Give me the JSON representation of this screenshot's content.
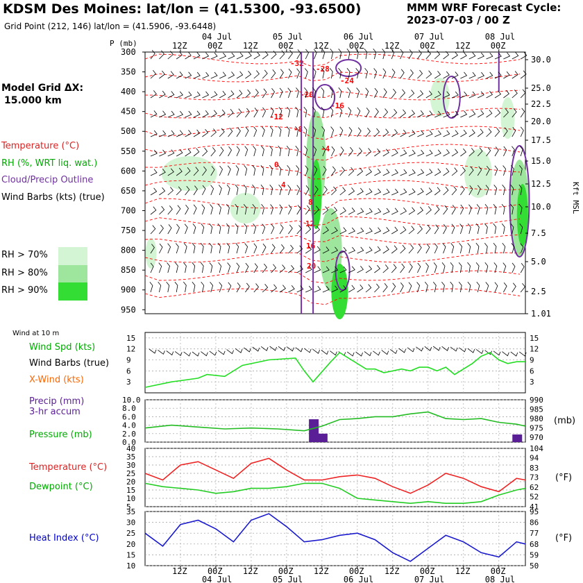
{
  "header": {
    "title": "KDSM Des Moines:  lat/lon = (41.5300, -93.6500)",
    "subtitle": "Grid Point (212, 146) lat/lon = (41.5906, -93.6448)",
    "cycle_line1": "MMM WRF Forecast Cycle:",
    "cycle_line2": "2023-07-03 / 00  Z"
  },
  "grid_info": {
    "line1": "Model Grid ΔX:",
    "line2": "15.000 km"
  },
  "legend": {
    "temperature": "Temperature (°C)",
    "rh": "RH (%, WRT liq. wat.)",
    "cloud": "Cloud/Precip Outline",
    "wind": "Wind Barbs (kts) (true)",
    "rh70": "RH > 70%",
    "rh80": "RH > 80%",
    "rh90": "RH > 90%"
  },
  "bottom_legend": {
    "wind_at": "Wind at 10 m",
    "wind_spd": "Wind Spd (kts)",
    "wind_barbs": "Wind Barbs (true)",
    "xwind": "X-Wind (kts)",
    "precip1": "Precip (mm)",
    "precip2": "3-hr accum",
    "pressure": "Pressure (mb)",
    "temp": "Temperature (°C)",
    "dew": "Dewpoint (°C)",
    "heat": "Heat Index (°C)",
    "mb": "(mb)",
    "degf": "(°F)"
  },
  "colors": {
    "temperature": "#ff0000",
    "rh": "#00cc00",
    "cloud": "#7030a0",
    "precip": "#5a1e96",
    "heat": "#0000cc",
    "rh70": "#d4f5d4",
    "rh80": "#9ee59e",
    "rh90": "#33dd33"
  },
  "time_axis": {
    "top_ticks": [
      "12Z",
      "00Z",
      "12Z",
      "00Z",
      "12Z",
      "00Z",
      "12Z",
      "00Z",
      "12Z",
      "00Z"
    ],
    "top_dates": [
      "04 Jul",
      "05 Jul",
      "06 Jul",
      "07 Jul",
      "08 Jul"
    ],
    "bottom_ticks": [
      "12Z",
      "00Z",
      "12Z",
      "00Z",
      "12Z",
      "00Z",
      "12Z",
      "00Z",
      "12Z",
      "00Z"
    ],
    "bottom_dates": [
      "04 Jul",
      "05 Jul",
      "06 Jul",
      "07 Jul",
      "08 Jul"
    ],
    "p_label": "P (mb)"
  },
  "chart_data": [
    {
      "type": "heatmap",
      "description_of": "cross-section",
      "ylabel": "P (mb)",
      "y_ticks": [
        "300",
        "350",
        "400",
        "450",
        "500",
        "550",
        "600",
        "650",
        "700",
        "750",
        "800",
        "850",
        "900",
        "950"
      ],
      "y_right_label": "Kft MSL",
      "y_right_ticks": [
        "30.0",
        "25.0",
        "22.5",
        "20.0",
        "17.5",
        "15.0",
        "12.5",
        "10.0",
        "7.5",
        "5.0",
        "2.5",
        "1.01"
      ],
      "temperature_labels": [
        "-32",
        "-28",
        "-24",
        "-20",
        "-16",
        "-12",
        "-8",
        "-4",
        "0",
        "4",
        "8",
        "12",
        "16",
        "20"
      ]
    },
    {
      "type": "line",
      "title": "Wind Spd (kts)",
      "y_ticks_left": [
        "15",
        "12",
        "9",
        "6",
        "3"
      ],
      "y_ticks_right": [
        "15",
        "12",
        "9",
        "6",
        "3"
      ],
      "x_hours": [
        0,
        9,
        18,
        21,
        27,
        33,
        42,
        51,
        54,
        57,
        63,
        66,
        69,
        75,
        78,
        81,
        87,
        90,
        93,
        96,
        99,
        102,
        105,
        111,
        114,
        117,
        120,
        123,
        126,
        129
      ],
      "values": [
        1.5,
        3,
        4,
        5,
        4.5,
        7.5,
        9,
        9.5,
        6,
        3,
        8.5,
        11,
        9.5,
        6.5,
        6.5,
        5.5,
        6.5,
        6,
        7,
        7,
        6,
        7,
        5,
        8,
        10,
        11,
        9,
        8,
        8.5,
        8.5
      ]
    },
    {
      "type": "bar",
      "title": "Precip (mm) 3-hr accum",
      "y_ticks_left": [
        "10.0",
        "8.0",
        "6.0",
        "4.0",
        "2.0",
        "0.0"
      ],
      "x_hours": [
        57,
        60,
        126
      ],
      "values": [
        5.4,
        2.0,
        1.8
      ]
    },
    {
      "type": "line",
      "title": "Pressure (mb)",
      "y_ticks_right": [
        "990",
        "985",
        "980",
        "975",
        "970"
      ],
      "x_hours": [
        0,
        9,
        18,
        27,
        36,
        45,
        54,
        60,
        66,
        72,
        78,
        84,
        90,
        96,
        102,
        108,
        114,
        120,
        126,
        129
      ],
      "values": [
        975,
        976.5,
        975.5,
        974.5,
        975,
        974.5,
        973.5,
        976,
        979.5,
        980,
        981,
        981,
        982.5,
        983.5,
        980,
        979.5,
        980,
        978,
        977,
        976
      ]
    },
    {
      "type": "line",
      "title": "Temperature / Dewpoint (°C)",
      "y_ticks_left": [
        "40",
        "35",
        "30",
        "25",
        "20",
        "15",
        "10",
        "5"
      ],
      "y_ticks_right": [
        "104",
        "94",
        "83",
        "73",
        "62",
        "52",
        "41"
      ],
      "x_hours": [
        0,
        6,
        12,
        18,
        24,
        30,
        36,
        42,
        48,
        54,
        60,
        66,
        72,
        78,
        84,
        90,
        96,
        102,
        108,
        114,
        120,
        126,
        129
      ],
      "series": [
        {
          "name": "Temperature",
          "values": [
            25,
            21,
            30,
            32,
            27,
            22,
            31,
            34,
            27,
            21,
            21,
            23,
            24,
            22,
            17,
            13,
            18,
            25,
            22,
            17,
            14,
            22,
            21
          ]
        },
        {
          "name": "Dewpoint",
          "values": [
            19,
            17,
            16,
            15,
            13,
            14,
            16,
            16,
            17,
            19,
            19,
            16,
            10,
            9,
            8,
            7,
            8,
            7,
            7,
            8,
            12,
            15,
            16
          ]
        }
      ]
    },
    {
      "type": "line",
      "title": "Heat Index (°C)",
      "y_ticks_left": [
        "35",
        "30",
        "25",
        "20",
        "15",
        "10"
      ],
      "y_ticks_right": [
        "95",
        "86",
        "77",
        "68",
        "59",
        "50"
      ],
      "x_hours": [
        0,
        6,
        12,
        18,
        24,
        30,
        36,
        42,
        48,
        54,
        60,
        66,
        72,
        78,
        84,
        90,
        96,
        102,
        108,
        114,
        120,
        126,
        129
      ],
      "values": [
        25,
        19,
        29,
        31,
        27,
        21,
        31,
        34,
        28,
        21,
        22,
        24,
        25,
        22,
        16,
        12,
        18,
        24,
        21,
        16,
        14,
        21,
        20
      ]
    }
  ]
}
